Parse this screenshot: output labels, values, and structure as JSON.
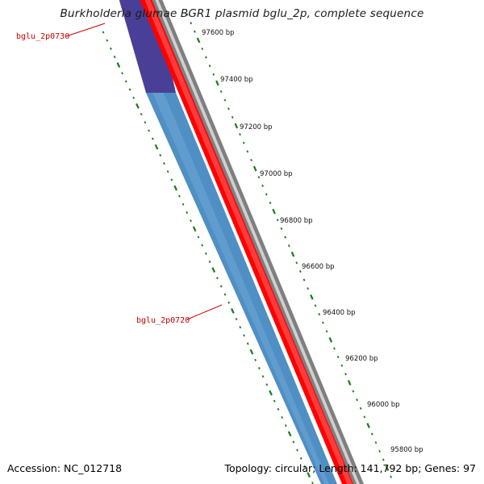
{
  "title": "Burkholderia glumae BGR1 plasmid bglu_2p, complete sequence",
  "footer": {
    "accession": "Accession: NC_012718",
    "summary": "Topology: circular; Length: 141,792 bp; Genes: 97"
  },
  "genes": [
    {
      "name": "bglu_2p0730",
      "color": "#4a3f96",
      "strand": "reverse"
    },
    {
      "name": "bglu_2p0720",
      "color": "#4f8fc4",
      "strand": "reverse"
    }
  ],
  "ticks": [
    {
      "label": "97600 bp"
    },
    {
      "label": "97400 bp"
    },
    {
      "label": "97200 bp"
    },
    {
      "label": "97000 bp"
    },
    {
      "label": "96800 bp"
    },
    {
      "label": "96600 bp"
    },
    {
      "label": "96400 bp"
    },
    {
      "label": "96200 bp"
    },
    {
      "label": "96000 bp"
    },
    {
      "label": "95800 bp"
    }
  ],
  "colors": {
    "backbone": "#808080",
    "forward_strand": "#ff0000",
    "tick_green": "#1a7a1a",
    "label_red": "#cc0000"
  }
}
